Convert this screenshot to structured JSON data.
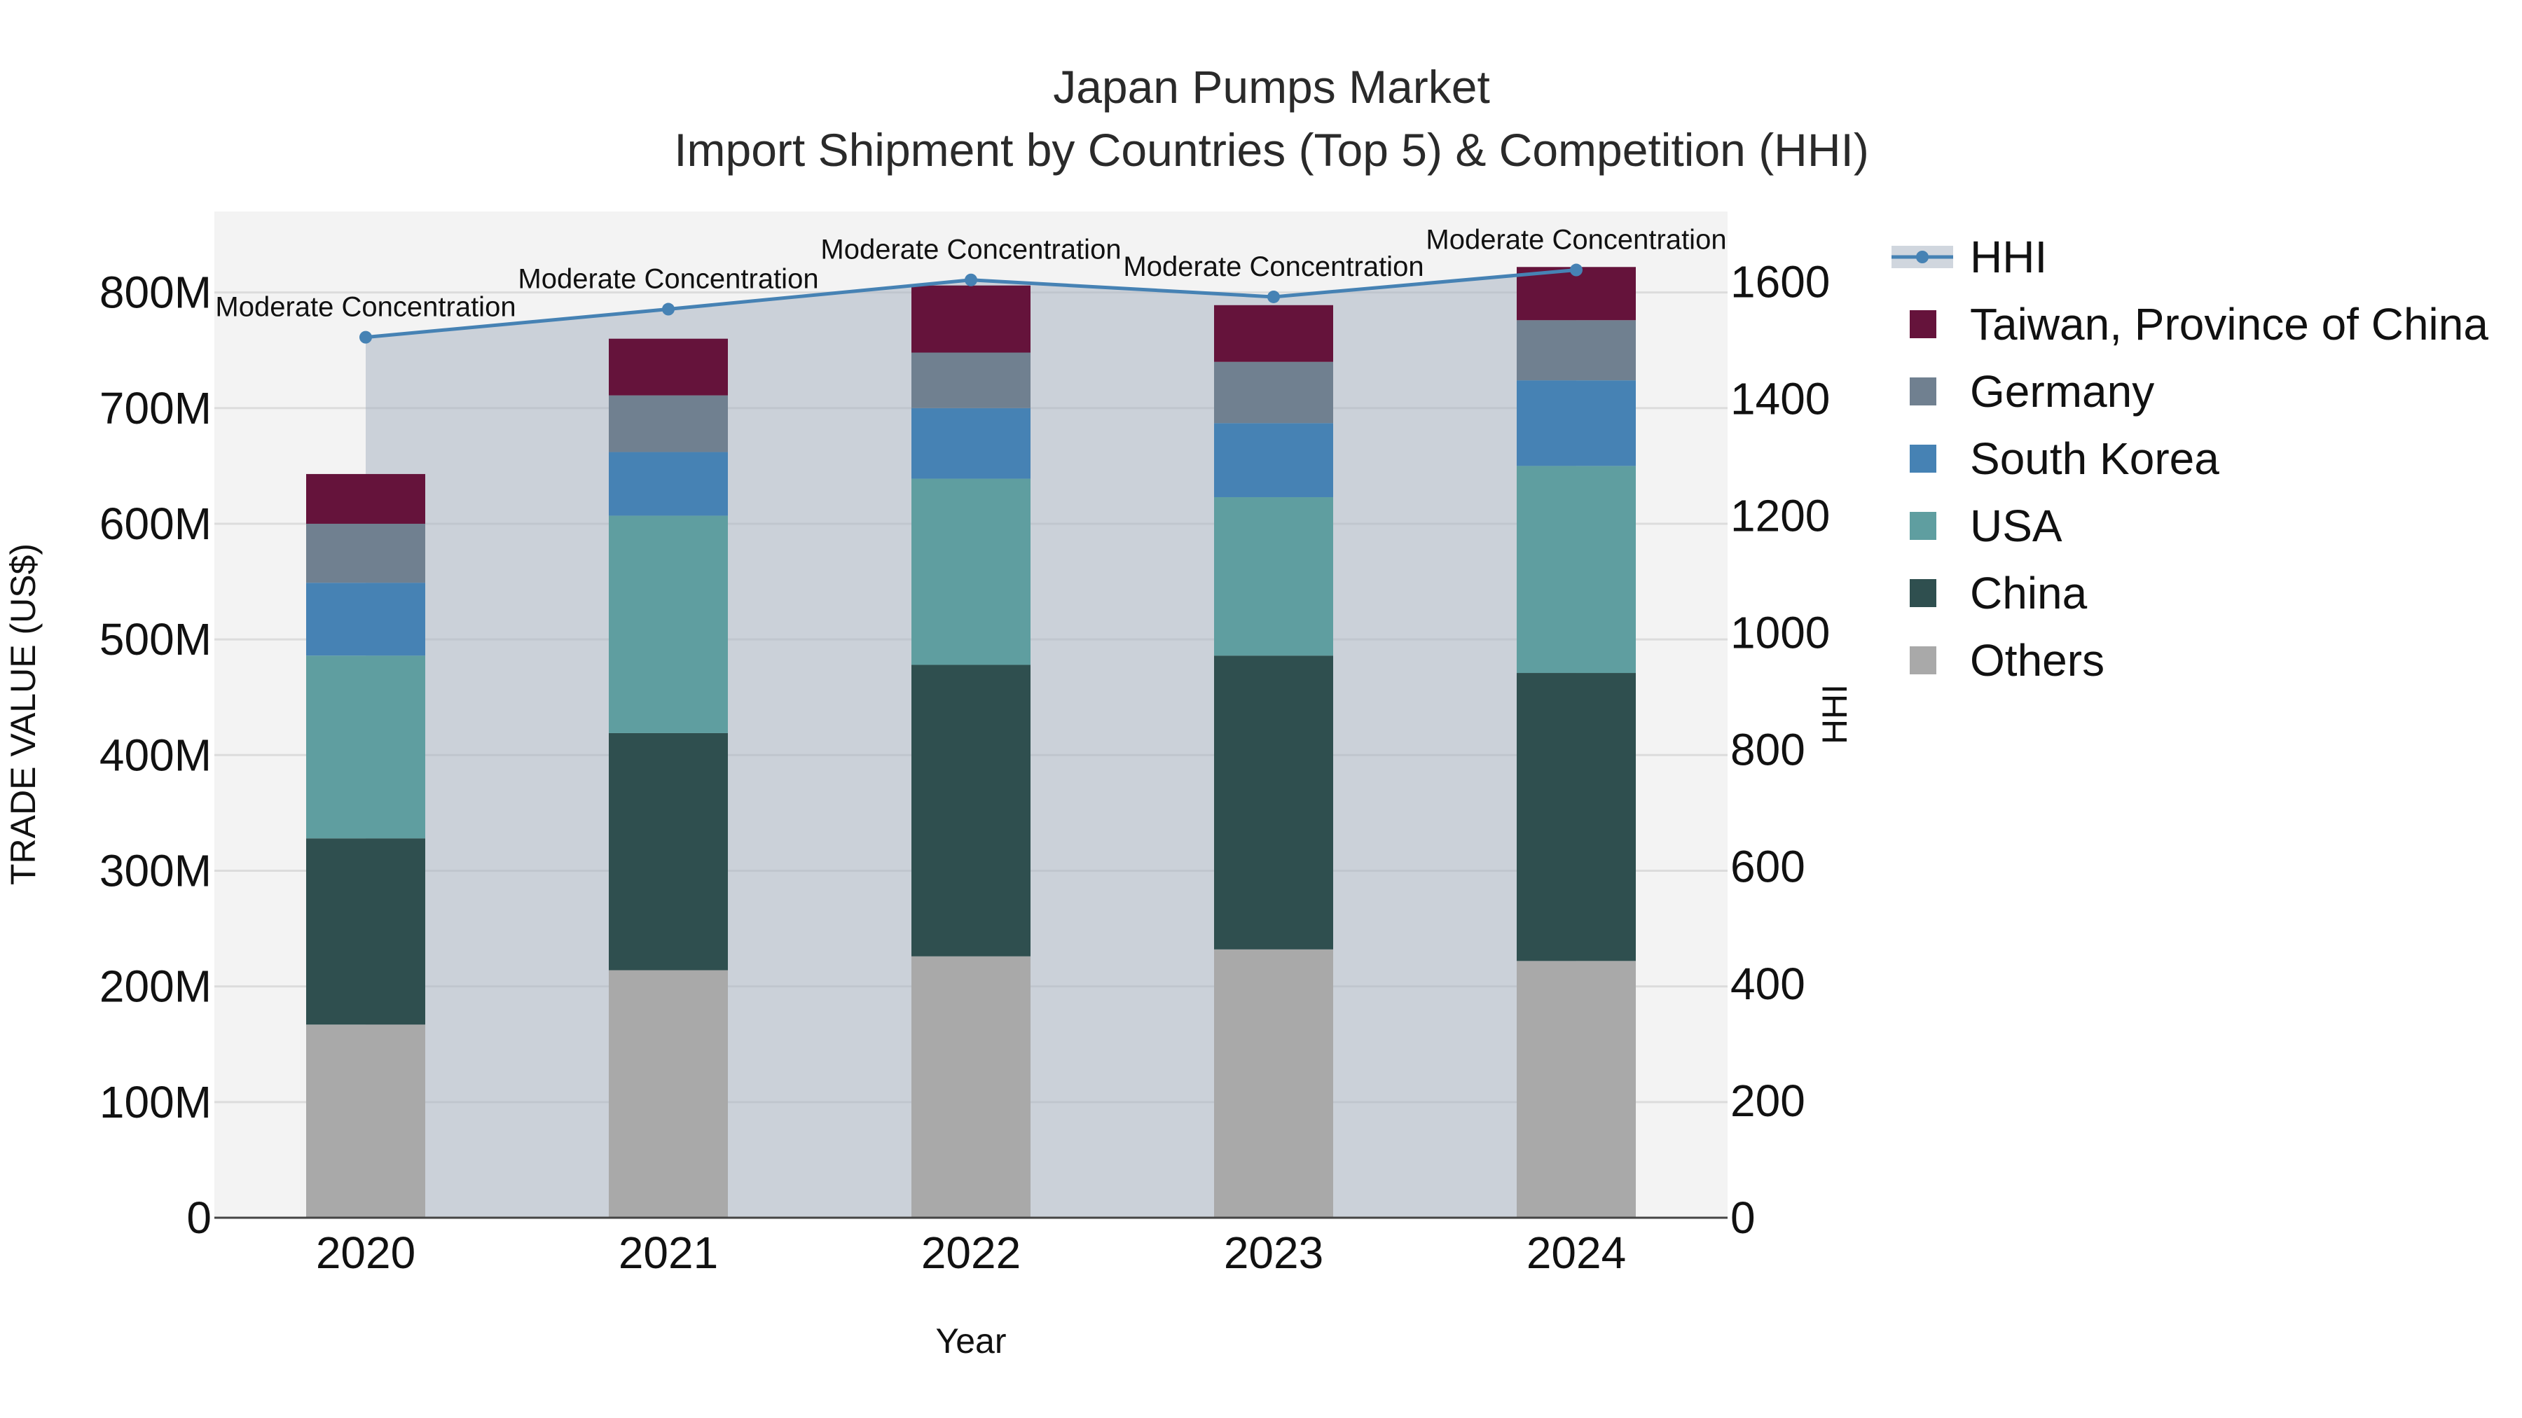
{
  "chart_data": {
    "type": "bar",
    "title": "Japan Pumps Market",
    "subtitle": "Import Shipment by Countries (Top 5) & Competition (HHI)",
    "xlabel": "Year",
    "ylabel": "TRADE VALUE (US$)",
    "y2label": "HHI",
    "categories": [
      "2020",
      "2021",
      "2022",
      "2023",
      "2024"
    ],
    "ylim": [
      0,
      870
    ],
    "y2lim": [
      0,
      1720
    ],
    "y_ticks": [
      0,
      100,
      200,
      300,
      400,
      500,
      600,
      700,
      800
    ],
    "y_tick_labels": [
      "0",
      "100M",
      "200M",
      "300M",
      "400M",
      "500M",
      "600M",
      "700M",
      "800M"
    ],
    "y2_ticks": [
      0,
      200,
      400,
      600,
      800,
      1000,
      1200,
      1400,
      1600
    ],
    "y2_tick_labels": [
      "0",
      "200",
      "400",
      "600",
      "800",
      "1000",
      "1200",
      "1400",
      "1600"
    ],
    "grid": true,
    "legend_position": "right",
    "series": [
      {
        "name": "Others",
        "color": "#a9a9a9",
        "values": [
          167,
          214,
          226,
          232,
          222
        ]
      },
      {
        "name": "China",
        "color": "#2f4f4f",
        "values": [
          161,
          205,
          252,
          254,
          249
        ]
      },
      {
        "name": "USA",
        "color": "#5f9ea0",
        "values": [
          158,
          188,
          161,
          137,
          179
        ]
      },
      {
        "name": "South Korea",
        "color": "#4682b4",
        "values": [
          63,
          55,
          61,
          64,
          74
        ]
      },
      {
        "name": "Germany",
        "color": "#708090",
        "values": [
          51,
          49,
          48,
          53,
          52
        ]
      },
      {
        "name": "Taiwan, Province of China",
        "color": "#65133b",
        "values": [
          43,
          49,
          58,
          49,
          46
        ]
      }
    ],
    "hhi": {
      "name": "HHI",
      "color": "#4682b4",
      "values": [
        1505,
        1553,
        1603,
        1574,
        1620
      ],
      "labels": [
        "Moderate Concentration",
        "Moderate Concentration",
        "Moderate Concentration",
        "Moderate Concentration",
        "Moderate Concentration"
      ]
    }
  }
}
